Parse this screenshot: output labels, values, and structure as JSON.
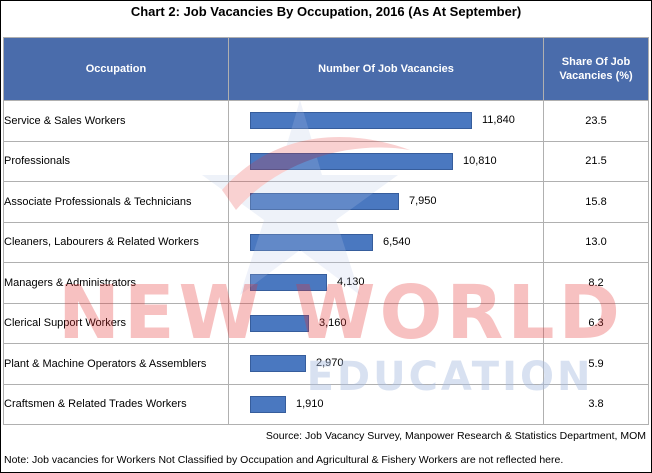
{
  "chart_data": {
    "type": "bar",
    "title": "Chart 2: Job Vacancies By Occupation, 2016 (As At September)",
    "columns": [
      "Occupation",
      "Number Of Job Vacancies",
      "Share Of Job Vacancies (%)"
    ],
    "categories": [
      "Service & Sales Workers",
      "Professionals",
      "Associate Professionals & Technicians",
      "Cleaners, Labourers & Related Workers",
      "Managers & Administrators",
      "Clerical Support Workers",
      "Plant & Machine Operators & Assemblers",
      "Craftsmen & Related Trades Workers"
    ],
    "values": [
      11840,
      10810,
      7950,
      6540,
      4130,
      3160,
      2970,
      1910
    ],
    "value_labels": [
      "11,840",
      "10,810",
      "7,950",
      "6,540",
      "4,130",
      "3,160",
      "2,970",
      "1,910"
    ],
    "shares": [
      "23.5",
      "21.5",
      "15.8",
      "13.0",
      "8.2",
      "6.3",
      "5.9",
      "3.8"
    ],
    "xlim": [
      0,
      11840
    ],
    "bar_color": "#4a78c0",
    "header_color": "#4a6cab"
  },
  "source": "Source: Job Vacancy Survey, Manpower Research & Statistics Department, MOM",
  "note": "Note: Job vacancies for Workers Not Classified by Occupation and Agricultural & Fishery Workers are not reflected here.",
  "watermark": {
    "line1": "NEW WORLD",
    "line2": "EDUCATION",
    "color": "#e63333"
  }
}
